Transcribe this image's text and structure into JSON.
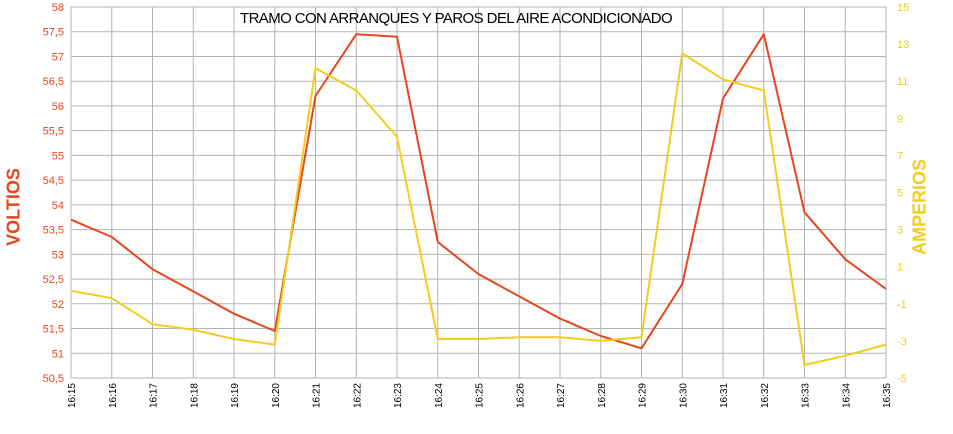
{
  "chart_data": {
    "type": "line",
    "title": "TRAMO CON ARRANQUES Y PAROS DEL AIRE ACONDICIONADO",
    "ylabel": "VOLTIOS",
    "y2label": "AMPERIOS",
    "categories": [
      "16:15",
      "16:16",
      "16:17",
      "16:18",
      "16:19",
      "16:20",
      "16:21",
      "16:22",
      "16:23",
      "16:24",
      "16:25",
      "16:26",
      "16:27",
      "16:28",
      "16:29",
      "16:30",
      "16:31",
      "16:32",
      "16:33",
      "16:34",
      "16:35"
    ],
    "ylim": [
      50.5,
      58
    ],
    "y2lim": [
      -5,
      15
    ],
    "yticks": [
      "50,5",
      "51",
      "51,5",
      "52",
      "52,5",
      "53",
      "53,5",
      "54",
      "54,5",
      "55",
      "55,5",
      "56",
      "56,5",
      "57",
      "57,5",
      "58"
    ],
    "y2ticks": [
      "-5",
      "-3",
      "-1",
      "1",
      "3",
      "5",
      "7",
      "9",
      "11",
      "13",
      "15"
    ],
    "grid": true,
    "series": [
      {
        "name": "VOLTIOS",
        "axis": "left",
        "color": "#e8451c",
        "values": [
          53.7,
          53.35,
          52.7,
          52.25,
          51.8,
          51.45,
          56.2,
          57.45,
          57.4,
          53.25,
          52.6,
          52.15,
          51.7,
          51.35,
          51.1,
          52.4,
          56.15,
          57.45,
          53.85,
          52.9,
          52.3
        ]
      },
      {
        "name": "AMPERIOS",
        "axis": "right",
        "color": "#f3cc1f",
        "values": [
          -0.3,
          -0.7,
          -2.1,
          -2.4,
          -2.9,
          -3.2,
          11.7,
          10.5,
          8.0,
          -2.9,
          -2.9,
          -2.8,
          -2.8,
          -3.0,
          -2.8,
          12.5,
          11.1,
          10.5,
          -4.3,
          -3.8,
          -3.2
        ]
      }
    ]
  }
}
